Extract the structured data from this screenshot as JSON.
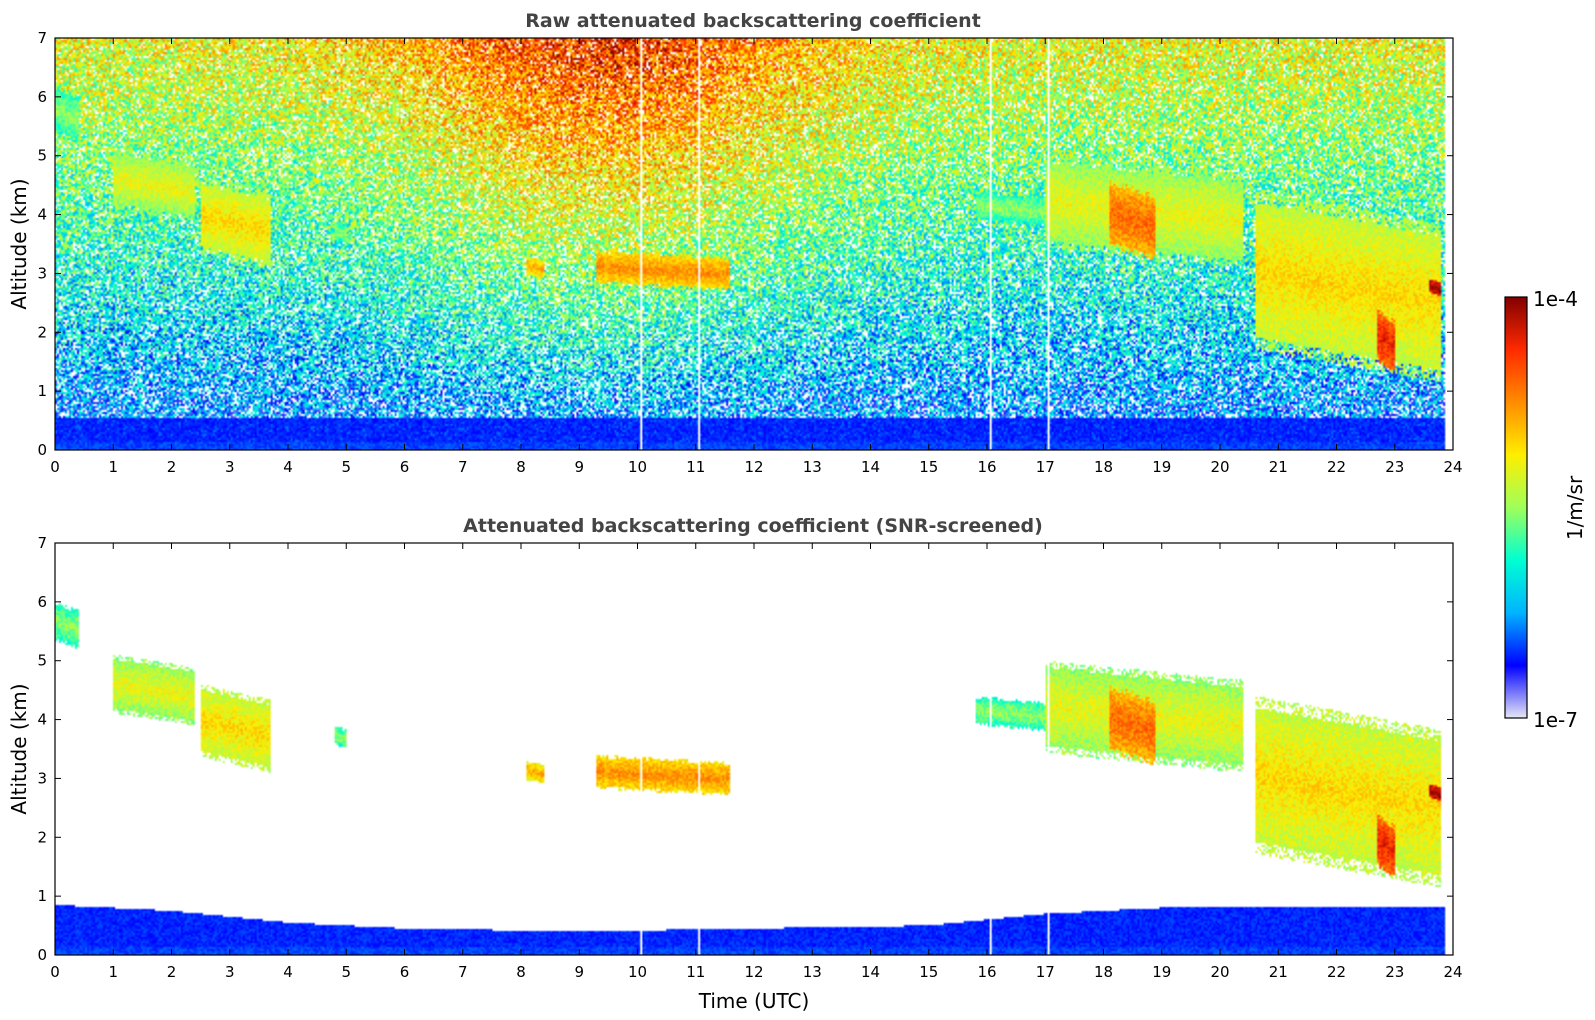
{
  "chart_data": [
    {
      "type": "heatmap",
      "title": "Raw attenuated backscattering coefficient",
      "xlabel": "",
      "ylabel": "Altitude (km)",
      "xlim": [
        0,
        24
      ],
      "ylim": [
        0,
        7
      ],
      "x_ticks": [
        "0",
        "1",
        "2",
        "3",
        "4",
        "5",
        "6",
        "7",
        "8",
        "9",
        "10",
        "11",
        "12",
        "13",
        "14",
        "15",
        "16",
        "17",
        "18",
        "19",
        "20",
        "21",
        "22",
        "23",
        "24"
      ],
      "y_ticks": [
        "0",
        "1",
        "2",
        "3",
        "4",
        "5",
        "6",
        "7"
      ],
      "x_units": "hours UTC",
      "y_units": "km",
      "data_end_hour": 23.85,
      "screened": false,
      "missing_profiles_hours": [
        10.05,
        11.05,
        16.05,
        17.05
      ],
      "boundary_layer": {
        "top_km": 0.55
      },
      "noise_background": "increases with altitude; strongest (red) around 7–11 UTC at 4–7 km",
      "features": [
        {
          "hours": [
            0.0,
            0.4
          ],
          "base_km": 5.2,
          "top_km": 6.2,
          "level": 0.5
        },
        {
          "hours": [
            1.0,
            2.4
          ],
          "base_km": 3.9,
          "top_km": 5.1,
          "level": 0.6
        },
        {
          "hours": [
            2.5,
            3.7
          ],
          "base_km": 3.1,
          "top_km": 4.6,
          "level": 0.65
        },
        {
          "hours": [
            4.8,
            5.0
          ],
          "base_km": 3.5,
          "top_km": 3.9,
          "level": 0.5
        },
        {
          "hours": [
            8.1,
            8.4
          ],
          "base_km": 2.9,
          "top_km": 3.3,
          "level": 0.72
        },
        {
          "hours": [
            9.3,
            11.6
          ],
          "base_km": 2.7,
          "top_km": 3.4,
          "level": 0.75
        },
        {
          "hours": [
            15.8,
            17.0
          ],
          "base_km": 3.8,
          "top_km": 4.4,
          "level": 0.5
        },
        {
          "hours": [
            17.0,
            20.4
          ],
          "base_km": 3.1,
          "top_km": 5.0,
          "level": 0.6
        },
        {
          "hours": [
            18.1,
            18.9
          ],
          "base_km": 3.2,
          "top_km": 4.6,
          "level": 0.8
        },
        {
          "hours": [
            20.6,
            23.8
          ],
          "base_km": 1.15,
          "top_km": 4.4,
          "level": 0.65
        },
        {
          "hours": [
            22.7,
            23.0
          ],
          "base_km": 1.3,
          "top_km": 2.4,
          "level": 0.9
        },
        {
          "hours": [
            23.6,
            23.8
          ],
          "base_km": 2.6,
          "top_km": 2.9,
          "level": 1.0
        }
      ]
    },
    {
      "type": "heatmap",
      "title": "Attenuated backscattering coefficient (SNR-screened)",
      "xlabel": "Time (UTC)",
      "ylabel": "Altitude (km)",
      "xlim": [
        0,
        24
      ],
      "ylim": [
        0,
        7
      ],
      "x_ticks": [
        "0",
        "1",
        "2",
        "3",
        "4",
        "5",
        "6",
        "7",
        "8",
        "9",
        "10",
        "11",
        "12",
        "13",
        "14",
        "15",
        "16",
        "17",
        "18",
        "19",
        "20",
        "21",
        "22",
        "23",
        "24"
      ],
      "y_ticks": [
        "0",
        "1",
        "2",
        "3",
        "4",
        "5",
        "6",
        "7"
      ],
      "x_units": "hours UTC",
      "y_units": "km",
      "data_end_hour": 23.85,
      "screened": true,
      "missing_profiles_hours": [
        10.05,
        11.05,
        16.05,
        17.05
      ],
      "boundary_layer": {
        "top_km_by_hour": [
          [
            0,
            0.85
          ],
          [
            2,
            0.75
          ],
          [
            4,
            0.55
          ],
          [
            6,
            0.45
          ],
          [
            9,
            0.4
          ],
          [
            12,
            0.45
          ],
          [
            15,
            0.5
          ],
          [
            17,
            0.7
          ],
          [
            19,
            0.8
          ],
          [
            23.85,
            0.8
          ]
        ]
      },
      "features": [
        {
          "hours": [
            0.0,
            0.4
          ],
          "base_km": 5.2,
          "top_km": 6.0,
          "level": 0.5
        },
        {
          "hours": [
            1.0,
            2.4
          ],
          "base_km": 3.9,
          "top_km": 5.1,
          "level": 0.6
        },
        {
          "hours": [
            2.5,
            3.7
          ],
          "base_km": 3.1,
          "top_km": 4.6,
          "level": 0.65
        },
        {
          "hours": [
            4.8,
            5.0
          ],
          "base_km": 3.5,
          "top_km": 3.9,
          "level": 0.5
        },
        {
          "hours": [
            8.1,
            8.4
          ],
          "base_km": 2.9,
          "top_km": 3.3,
          "level": 0.72
        },
        {
          "hours": [
            9.3,
            11.6
          ],
          "base_km": 2.7,
          "top_km": 3.4,
          "level": 0.75
        },
        {
          "hours": [
            15.8,
            17.0
          ],
          "base_km": 3.8,
          "top_km": 4.4,
          "level": 0.5
        },
        {
          "hours": [
            17.0,
            20.4
          ],
          "base_km": 3.1,
          "top_km": 5.0,
          "level": 0.6
        },
        {
          "hours": [
            18.1,
            18.9
          ],
          "base_km": 3.2,
          "top_km": 4.6,
          "level": 0.8
        },
        {
          "hours": [
            20.6,
            23.8
          ],
          "base_km": 1.15,
          "top_km": 4.4,
          "level": 0.65
        },
        {
          "hours": [
            22.7,
            23.0
          ],
          "base_km": 1.3,
          "top_km": 2.4,
          "level": 0.9
        },
        {
          "hours": [
            23.6,
            23.8
          ],
          "base_km": 2.6,
          "top_km": 2.9,
          "level": 1.0
        }
      ]
    }
  ],
  "colorbar": {
    "label": "1/m/sr",
    "max_label": "1e-4",
    "min_label": "1e-7",
    "scale": "log",
    "range": [
      1e-07,
      0.0001
    ],
    "colormap": "jet",
    "colors": [
      "#e6e6f5",
      "#0000ff",
      "#00b4ff",
      "#00ffd2",
      "#9fff5a",
      "#ffee00",
      "#ff8c00",
      "#ff2a00",
      "#820000"
    ]
  }
}
